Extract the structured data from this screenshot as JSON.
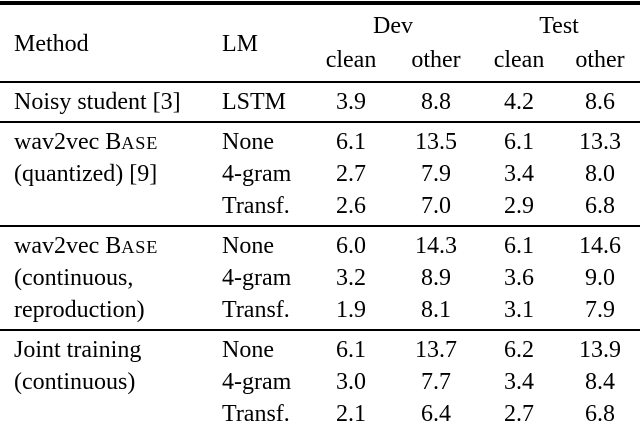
{
  "colors": {
    "background": "#ffffff",
    "text": "#000000",
    "rule": "#000000"
  },
  "table": {
    "headers": {
      "method": "Method",
      "lm": "LM",
      "groups": [
        {
          "label": "Dev",
          "subcols": [
            "clean",
            "other"
          ]
        },
        {
          "label": "Test",
          "subcols": [
            "clean",
            "other"
          ]
        }
      ]
    },
    "blocks": [
      {
        "method_lines": [
          [
            {
              "t": "Noisy student [3]"
            }
          ]
        ],
        "rows": [
          {
            "lm": "LSTM",
            "values": [
              "3.9",
              "8.8",
              "4.2",
              "8.6"
            ]
          }
        ]
      },
      {
        "method_lines": [
          [
            {
              "t": "wav2vec B"
            },
            {
              "t": "ase",
              "sc": true
            }
          ],
          [
            {
              "t": "(quantized) [9]"
            }
          ],
          []
        ],
        "rows": [
          {
            "lm": "None",
            "values": [
              "6.1",
              "13.5",
              "6.1",
              "13.3"
            ]
          },
          {
            "lm": "4-gram",
            "values": [
              "2.7",
              "7.9",
              "3.4",
              "8.0"
            ]
          },
          {
            "lm": "Transf.",
            "values": [
              "2.6",
              "7.0",
              "2.9",
              "6.8"
            ]
          }
        ]
      },
      {
        "method_lines": [
          [
            {
              "t": "wav2vec B"
            },
            {
              "t": "ase",
              "sc": true
            }
          ],
          [
            {
              "t": "(continuous,"
            }
          ],
          [
            {
              "t": "reproduction)"
            }
          ]
        ],
        "rows": [
          {
            "lm": "None",
            "values": [
              "6.0",
              "14.3",
              "6.1",
              "14.6"
            ]
          },
          {
            "lm": "4-gram",
            "values": [
              "3.2",
              "8.9",
              "3.6",
              "9.0"
            ]
          },
          {
            "lm": "Transf.",
            "values": [
              "1.9",
              "8.1",
              "3.1",
              "7.9"
            ]
          }
        ]
      },
      {
        "method_lines": [
          [
            {
              "t": "Joint training"
            }
          ],
          [
            {
              "t": "(continuous)"
            }
          ],
          []
        ],
        "rows": [
          {
            "lm": "None",
            "values": [
              "6.1",
              "13.7",
              "6.2",
              "13.9"
            ]
          },
          {
            "lm": "4-gram",
            "values": [
              "3.0",
              "7.7",
              "3.4",
              "8.4"
            ]
          },
          {
            "lm": "Transf.",
            "values": [
              "2.1",
              "6.4",
              "2.7",
              "6.8"
            ]
          }
        ]
      }
    ]
  },
  "chart_data": {
    "type": "table",
    "title": "",
    "column_headers": [
      "Method",
      "LM",
      "Dev clean",
      "Dev other",
      "Test clean",
      "Test other"
    ],
    "rows": [
      [
        "Noisy student [3]",
        "LSTM",
        3.9,
        8.8,
        4.2,
        8.6
      ],
      [
        "wav2vec Base (quantized) [9]",
        "None",
        6.1,
        13.5,
        6.1,
        13.3
      ],
      [
        "wav2vec Base (quantized) [9]",
        "4-gram",
        2.7,
        7.9,
        3.4,
        8.0
      ],
      [
        "wav2vec Base (quantized) [9]",
        "Transf.",
        2.6,
        7.0,
        2.9,
        6.8
      ],
      [
        "wav2vec Base (continuous, reproduction)",
        "None",
        6.0,
        14.3,
        6.1,
        14.6
      ],
      [
        "wav2vec Base (continuous, reproduction)",
        "4-gram",
        3.2,
        8.9,
        3.6,
        9.0
      ],
      [
        "wav2vec Base (continuous, reproduction)",
        "Transf.",
        1.9,
        8.1,
        3.1,
        7.9
      ],
      [
        "Joint training (continuous)",
        "None",
        6.1,
        13.7,
        6.2,
        13.9
      ],
      [
        "Joint training (continuous)",
        "4-gram",
        3.0,
        7.7,
        3.4,
        8.4
      ],
      [
        "Joint training (continuous)",
        "Transf.",
        2.1,
        6.4,
        2.7,
        6.8
      ]
    ]
  }
}
